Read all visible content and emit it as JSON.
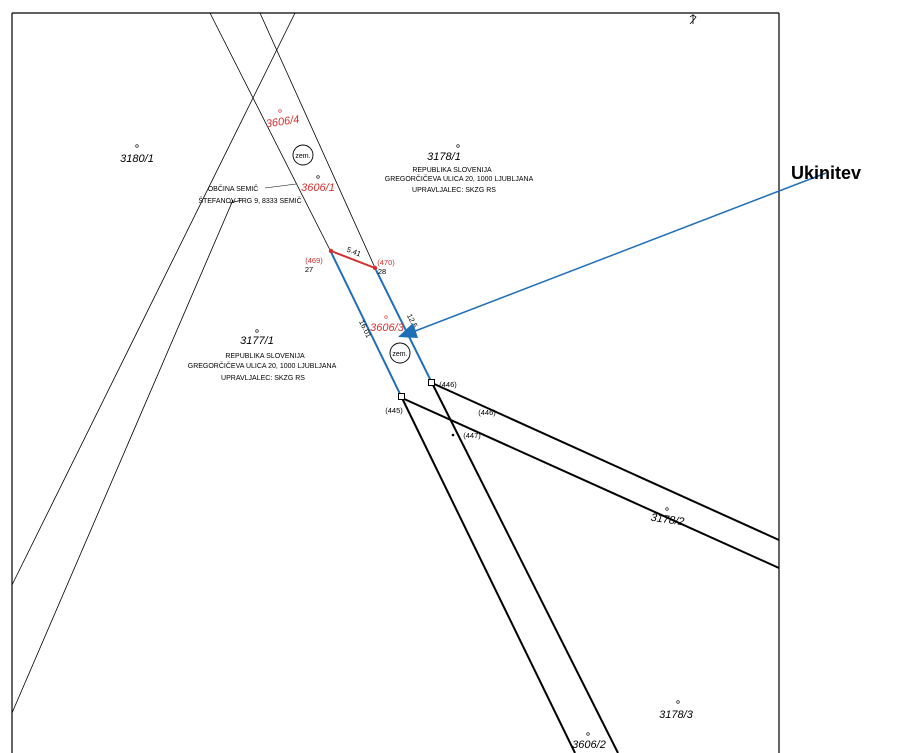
{
  "parcels": {
    "p3180_1": "3180/1",
    "p3606_4": "3606/4",
    "p3606_1": "3606/1",
    "p3178_1": "3178/1",
    "p3177_1": "3177/1",
    "p3606_3": "3606/3",
    "p3178_2": "3178/2",
    "p3178_3": "3178/3",
    "p3606_2": "3606/2"
  },
  "owners": {
    "semic_name": "OBČINA SEMIČ",
    "semic_address": "ŠTEFANOV TRG 9, 8333 SEMIČ",
    "rs1_name": "REPUBLIKA SLOVENIJA",
    "rs1_address": "GREGORČIČEVA ULICA 20, 1000 LJUBLJANA",
    "rs1_manager": "UPRAVLJALEC: SKZG RS",
    "rs2_name": "REPUBLIKA SLOVENIJA",
    "rs2_address": "GREGORČIČEVA ULICA 20, 1000 LJUBLJANA",
    "rs2_manager": "UPRAVLJALEC: SKZG RS"
  },
  "points": {
    "p469": "(469)",
    "p27": "27",
    "p470": "(470)",
    "p28": "28",
    "p446a": "(446)",
    "p445": "(445)",
    "p446b": "(446)",
    "p447": "(447)"
  },
  "dimensions": {
    "top": "5.41",
    "left": "16.01",
    "right": "12.5"
  },
  "zem_label": "zem.",
  "legend": {
    "label": "Ukinitev"
  },
  "colors": {
    "red": "#d23030",
    "blue": "#1f6fb8",
    "black": "#000000"
  }
}
